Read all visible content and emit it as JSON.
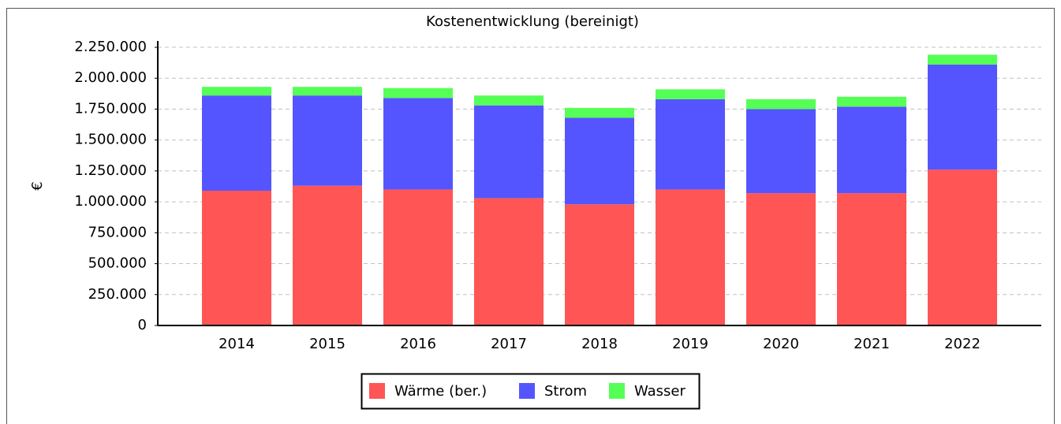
{
  "chart_data": {
    "type": "stacked_bar",
    "title": "Kostenentwicklung (bereinigt)",
    "y_label": "€",
    "categories": [
      "2014",
      "2015",
      "2016",
      "2017",
      "2018",
      "2019",
      "2020",
      "2021",
      "2022"
    ],
    "series": [
      {
        "name": "Wärme (ber.)",
        "color": "#ff5555",
        "values": [
          1090000,
          1130000,
          1100000,
          1030000,
          980000,
          1100000,
          1070000,
          1070000,
          1260000
        ]
      },
      {
        "name": "Strom",
        "color": "#5555ff",
        "values": [
          770000,
          730000,
          740000,
          750000,
          700000,
          730000,
          680000,
          700000,
          850000
        ]
      },
      {
        "name": "Wasser",
        "color": "#55ff55",
        "values": [
          70000,
          70000,
          80000,
          80000,
          80000,
          80000,
          80000,
          80000,
          80000
        ]
      }
    ],
    "ylim": [
      0,
      2250000
    ],
    "yticks": [
      0,
      {
        "value": 250000,
        "label": "250.000"
      },
      {
        "value": 500000,
        "label": "500.000"
      },
      {
        "value": 750000,
        "label": "750.000"
      },
      {
        "value": 1000000,
        "label": "1.000.000"
      },
      {
        "value": 1250000,
        "label": "1.250.000"
      },
      {
        "value": 1500000,
        "label": "1.500.000"
      },
      {
        "value": 1750000,
        "label": "1.750.000"
      },
      {
        "value": 2000000,
        "label": "2.000.000"
      },
      {
        "value": 2250000,
        "label": "2.250.000"
      }
    ],
    "grid": true,
    "legend": "bottom"
  }
}
